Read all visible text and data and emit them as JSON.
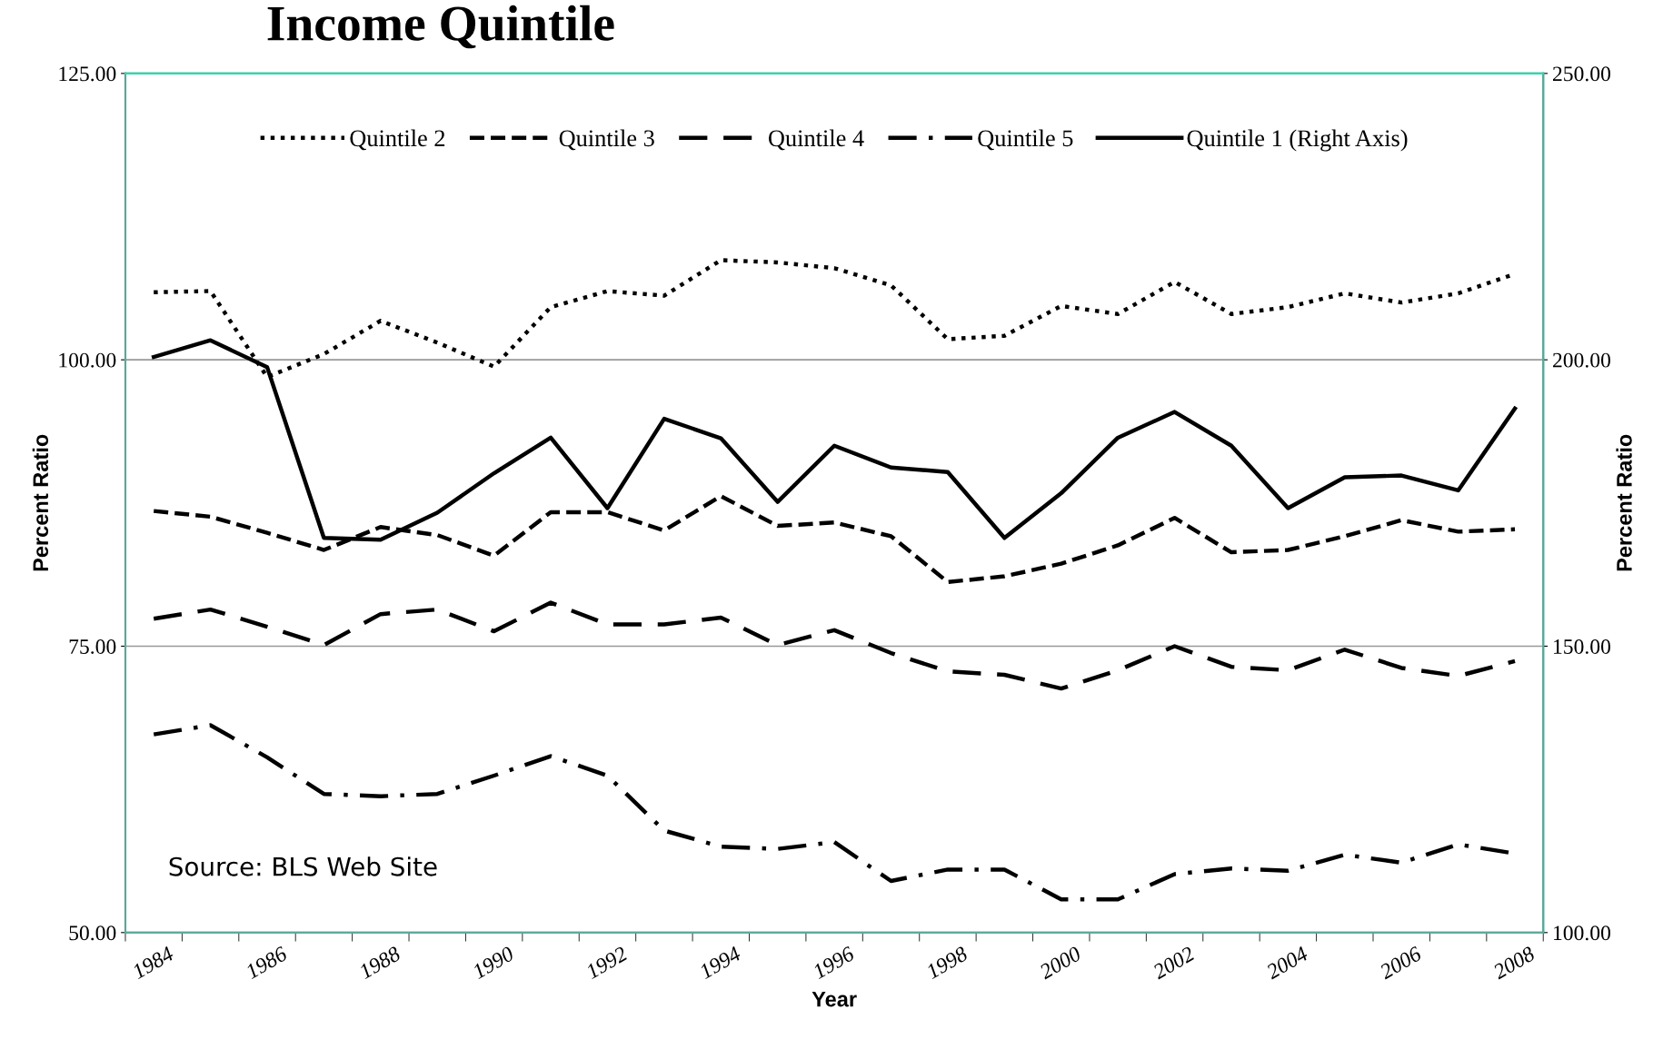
{
  "chart_data": {
    "type": "line",
    "title": "Income Quintile",
    "xlabel": "Year",
    "ylabel": "Percent Ratio",
    "y2label": "Percent Ratio",
    "categories": [
      "1984",
      null,
      "1986",
      null,
      "1988",
      null,
      "1990",
      null,
      "1992",
      null,
      "1994",
      null,
      "1996",
      null,
      "1998",
      null,
      "2000",
      null,
      "2002",
      null,
      "2004",
      null,
      "2006",
      null,
      "2008"
    ],
    "series": [
      {
        "name": "Quintile 2",
        "color": "#000000",
        "line_style": "dotted",
        "values": [
          105.9,
          106.0,
          98.5,
          100.5,
          103.4,
          101.5,
          99.4,
          104.6,
          106.0,
          105.6,
          108.7,
          108.5,
          108.0,
          106.5,
          101.8,
          102.1,
          104.7,
          104.0,
          106.8,
          104.0,
          104.6,
          105.8,
          105.0,
          105.8,
          107.5
        ]
      },
      {
        "name": "Quintile 3",
        "color": "#000000",
        "line_style": "dashed",
        "values": [
          86.8,
          86.3,
          84.9,
          83.4,
          85.4,
          84.7,
          82.9,
          86.7,
          86.7,
          85.1,
          88.1,
          85.5,
          85.8,
          84.6,
          80.6,
          81.1,
          82.2,
          83.8,
          86.2,
          83.2,
          83.4,
          84.6,
          86.0,
          85.0,
          85.2
        ]
      },
      {
        "name": "Quintile 4",
        "color": "#000000",
        "line_style": "long dashed",
        "values": [
          77.4,
          78.2,
          76.7,
          75.1,
          77.8,
          78.2,
          76.3,
          78.8,
          76.9,
          76.9,
          77.5,
          75.1,
          76.4,
          74.4,
          72.8,
          72.5,
          71.3,
          72.9,
          75.0,
          73.2,
          72.9,
          74.7,
          73.1,
          72.4,
          73.7
        ]
      },
      {
        "name": "Quintile 5",
        "color": "#000000",
        "line_style": "dash-dot",
        "values": [
          67.3,
          68.1,
          65.3,
          62.1,
          61.9,
          62.1,
          63.7,
          65.4,
          63.7,
          58.9,
          57.5,
          57.3,
          57.9,
          54.5,
          55.5,
          55.5,
          52.9,
          52.9,
          55.1,
          55.6,
          55.4,
          56.8,
          56.1,
          57.7,
          56.9
        ]
      },
      {
        "name": "Quintile 1 (Right Axis)",
        "color": "#000000",
        "line_style": "solid",
        "axis": "y2",
        "values": [
          200.5,
          203.4,
          198.7,
          168.9,
          168.6,
          173.3,
          180.2,
          186.4,
          174.1,
          189.7,
          186.3,
          175.2,
          185.0,
          181.2,
          180.4,
          168.9,
          176.7,
          186.4,
          190.9,
          185.0,
          174.1,
          179.5,
          179.8,
          177.2,
          191.5
        ]
      }
    ],
    "ylim": [
      50,
      125
    ],
    "yticks": [
      {
        "value": 50,
        "label": "50.00"
      },
      {
        "value": 75,
        "label": "75.00"
      },
      {
        "value": 100,
        "label": "100.00"
      },
      {
        "value": 125,
        "label": "125.00"
      }
    ],
    "y2lim": [
      100,
      250
    ],
    "y2ticks": [
      {
        "value": 100,
        "label": "100.00"
      },
      {
        "value": 150,
        "label": "150.00"
      },
      {
        "value": 200,
        "label": "200.00"
      },
      {
        "value": 250,
        "label": "250.00"
      }
    ],
    "grid": "y",
    "legend": "top",
    "marker": "none",
    "annotations": [
      "Source: BLS Web Site"
    ]
  }
}
